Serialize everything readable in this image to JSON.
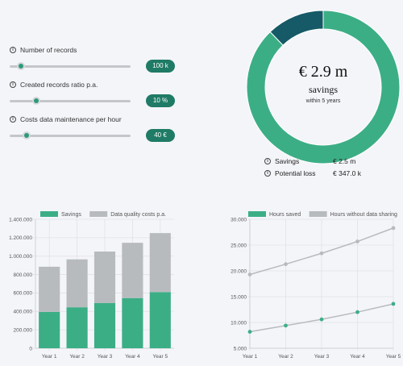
{
  "sliders": [
    {
      "label": "Number of records",
      "value": "100 k",
      "level": 0.09
    },
    {
      "label": "Created records ratio p.a.",
      "value": "10 %",
      "level": 0.22
    },
    {
      "label": "Costs data maintenance per hour",
      "value": "40 €",
      "level": 0.14
    }
  ],
  "info_glyph": "i",
  "donut": {
    "value": "€ 2.9 m",
    "label": "savings",
    "note": "within 5 years",
    "colors": {
      "savings": "#3cae86",
      "loss": "#155a66"
    },
    "segments": [
      {
        "name": "Savings",
        "amount": 2.5
      },
      {
        "name": "Potential loss",
        "amount": 0.347
      }
    ]
  },
  "summary": [
    {
      "name": "Savings",
      "value": "€ 2.5 m"
    },
    {
      "name": "Potential loss",
      "value": "€ 347.0 k"
    }
  ],
  "chart_data": [
    {
      "type": "bar",
      "stacked": true,
      "categories": [
        "Year 1",
        "Year 2",
        "Year 3",
        "Year 4",
        "Year 5"
      ],
      "series": [
        {
          "name": "Savings",
          "color": "#3cae86",
          "values": [
            395000,
            445000,
            490000,
            545000,
            610000
          ]
        },
        {
          "name": "Data quality costs p.a.",
          "color": "#b8bbbe",
          "values": [
            490000,
            520000,
            560000,
            600000,
            640000
          ]
        }
      ],
      "ylim": [
        0,
        1400000
      ],
      "yticks": [
        "0",
        "200.000",
        "400.000",
        "600.000",
        "800.000",
        "1.000.000",
        "1.200.000",
        "1.400.000"
      ],
      "grid": true,
      "legend": "top-center"
    },
    {
      "type": "line",
      "categories": [
        "Year 1",
        "Year 2",
        "Year 3",
        "Year 4",
        "Year 5"
      ],
      "series": [
        {
          "name": "Hours saved",
          "color": "#3cae86",
          "values": [
            8200,
            9400,
            10600,
            12000,
            13600
          ]
        },
        {
          "name": "Hours without data sharing",
          "color": "#b8bbbe",
          "values": [
            19300,
            21300,
            23400,
            25700,
            28300
          ]
        }
      ],
      "ylim": [
        5000,
        30000
      ],
      "yticks": [
        "5.000",
        "10.000",
        "15.000",
        "20.000",
        "25.000",
        "30.000"
      ],
      "grid": true,
      "legend": "top-center"
    }
  ]
}
